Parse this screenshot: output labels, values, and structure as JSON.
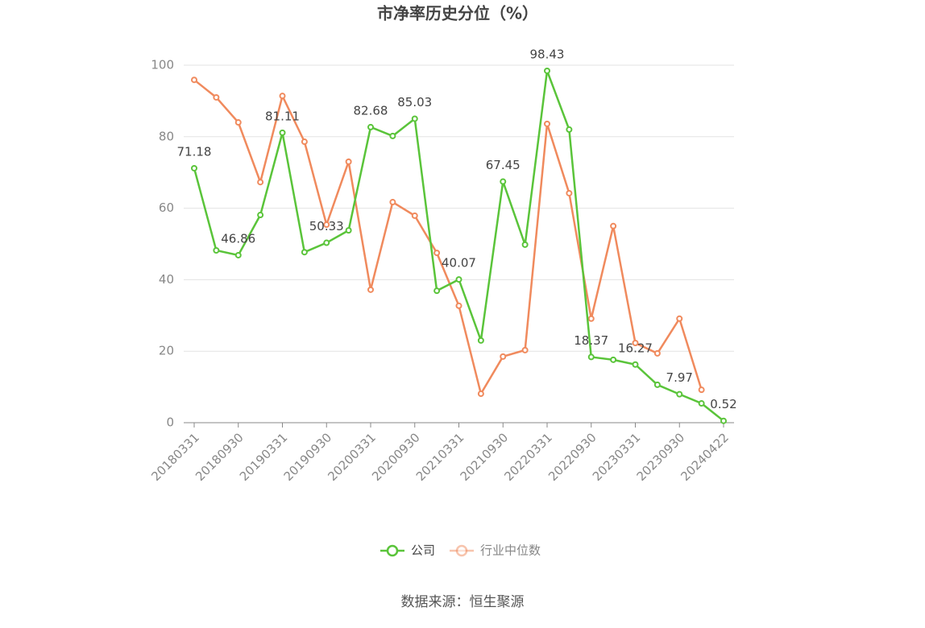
{
  "chart_data": {
    "type": "line",
    "title": "市净率历史分位（%）",
    "categories": [
      "20180331",
      null,
      "20180930",
      null,
      "20190331",
      null,
      "20190930",
      null,
      "20200331",
      null,
      "20200930",
      null,
      "20210331",
      null,
      "20210930",
      null,
      "20220331",
      null,
      "20220930",
      null,
      "20230331",
      null,
      "20230930",
      null,
      "20240422"
    ],
    "series": [
      {
        "name": "公司",
        "color": "#5ac43a",
        "values": [
          71.18,
          48.2,
          46.86,
          58.1,
          81.11,
          47.7,
          50.33,
          53.8,
          82.68,
          80.2,
          85.03,
          36.9,
          40.07,
          23.0,
          67.45,
          49.8,
          98.43,
          82.0,
          18.37,
          17.6,
          16.27,
          10.6,
          7.97,
          5.4,
          0.52
        ]
      },
      {
        "name": "行业中位数",
        "color": "#f08a5d",
        "values": [
          95.9,
          91.0,
          84.0,
          67.3,
          91.4,
          78.6,
          55.4,
          73.0,
          37.2,
          61.7,
          57.9,
          47.5,
          32.7,
          8.1,
          18.5,
          20.3,
          83.6,
          64.2,
          29.1,
          55.0,
          22.3,
          19.4,
          29.1,
          9.2,
          null
        ]
      }
    ],
    "ylim": [
      0,
      100
    ],
    "yticks": [
      0,
      20,
      40,
      60,
      80,
      100
    ],
    "grid": true,
    "legend": "bottom",
    "source": "数据来源：恒生聚源"
  }
}
